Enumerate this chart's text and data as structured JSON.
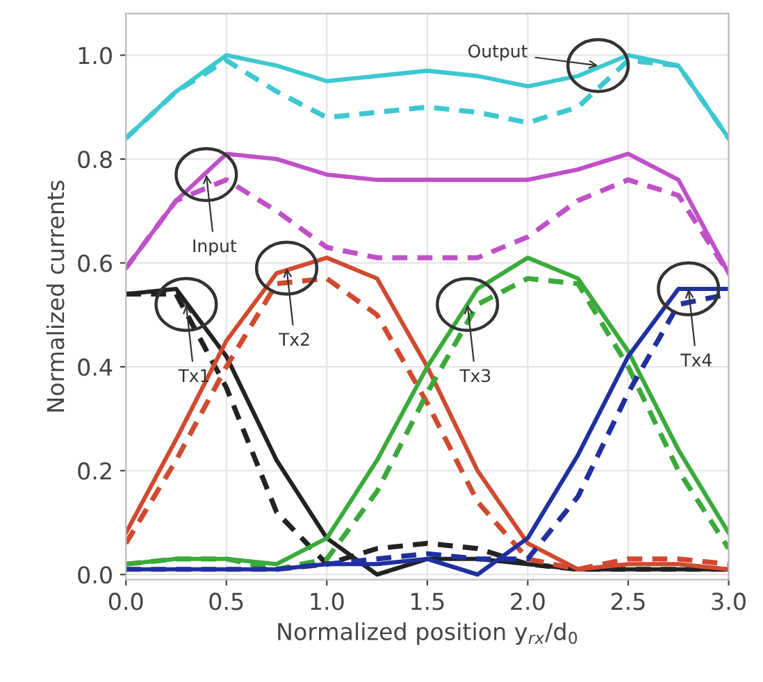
{
  "chart_data": {
    "type": "line",
    "xlabel": "Normalized position y$_{rx}$/d$_{0}$",
    "ylabel": "Normalized currents",
    "x": [
      0,
      0.25,
      0.5,
      0.75,
      1.0,
      1.25,
      1.5,
      1.75,
      2.0,
      2.25,
      2.5,
      2.75,
      3.0
    ],
    "xlim": [
      0,
      3
    ],
    "ylim": [
      -0.01,
      1.08
    ],
    "xticks": [
      {
        "value": 0,
        "label": "0.0"
      },
      {
        "value": 0.5,
        "label": "0.5"
      },
      {
        "value": 1,
        "label": "1.0"
      },
      {
        "value": 1.5,
        "label": "1.5"
      },
      {
        "value": 2,
        "label": "2.0"
      },
      {
        "value": 2.5,
        "label": "2.5"
      },
      {
        "value": 3,
        "label": "3.0"
      }
    ],
    "yticks": [
      {
        "value": 0,
        "label": "0.0"
      },
      {
        "value": 0.2,
        "label": "0.2"
      },
      {
        "value": 0.4,
        "label": "0.4"
      },
      {
        "value": 0.6,
        "label": "0.6"
      },
      {
        "value": 0.8,
        "label": "0.8"
      },
      {
        "value": 1,
        "label": "1.0"
      }
    ],
    "grid": true,
    "marker": "none",
    "series": [
      {
        "color": "#3cc8d0",
        "line_style": "solid",
        "values": [
          0.84,
          0.93,
          1.0,
          0.98,
          0.95,
          0.96,
          0.97,
          0.96,
          0.94,
          0.96,
          1.0,
          0.98,
          0.84
        ]
      },
      {
        "color": "#3cc8d0",
        "line_style": "dashed",
        "values": [
          0.84,
          0.93,
          0.99,
          0.93,
          0.88,
          0.89,
          0.9,
          0.89,
          0.87,
          0.9,
          0.99,
          0.98,
          0.84
        ]
      },
      {
        "color": "#c050c8",
        "line_style": "solid",
        "values": [
          0.59,
          0.72,
          0.81,
          0.8,
          0.77,
          0.76,
          0.76,
          0.76,
          0.76,
          0.78,
          0.81,
          0.76,
          0.58
        ]
      },
      {
        "color": "#c050c8",
        "line_style": "dashed",
        "values": [
          0.59,
          0.72,
          0.76,
          0.7,
          0.63,
          0.61,
          0.61,
          0.61,
          0.65,
          0.72,
          0.76,
          0.73,
          0.58
        ]
      },
      {
        "color": "#222222",
        "line_style": "solid",
        "values": [
          0.54,
          0.55,
          0.42,
          0.22,
          0.07,
          0.0,
          0.03,
          0.03,
          0.02,
          0.01,
          0.01,
          0.01,
          0.01
        ]
      },
      {
        "color": "#222222",
        "line_style": "dashed",
        "values": [
          0.54,
          0.54,
          0.36,
          0.12,
          0.02,
          0.05,
          0.06,
          0.05,
          0.02,
          0.01,
          0.01,
          0.01,
          0.01
        ]
      },
      {
        "color": "#d04a30",
        "line_style": "solid",
        "values": [
          0.08,
          0.26,
          0.45,
          0.58,
          0.61,
          0.57,
          0.4,
          0.2,
          0.06,
          0.01,
          0.02,
          0.02,
          0.01
        ]
      },
      {
        "color": "#d04a30",
        "line_style": "dashed",
        "values": [
          0.06,
          0.22,
          0.4,
          0.56,
          0.57,
          0.5,
          0.33,
          0.14,
          0.03,
          0.01,
          0.03,
          0.03,
          0.02
        ]
      },
      {
        "color": "#3aaa3a",
        "line_style": "solid",
        "values": [
          0.02,
          0.03,
          0.03,
          0.02,
          0.07,
          0.22,
          0.4,
          0.55,
          0.61,
          0.57,
          0.43,
          0.24,
          0.08
        ]
      },
      {
        "color": "#3aaa3a",
        "line_style": "dashed",
        "values": [
          0.02,
          0.03,
          0.03,
          0.01,
          0.03,
          0.16,
          0.35,
          0.52,
          0.57,
          0.56,
          0.4,
          0.2,
          0.05
        ]
      },
      {
        "color": "#2030a0",
        "line_style": "solid",
        "values": [
          0.01,
          0.01,
          0.01,
          0.01,
          0.02,
          0.02,
          0.03,
          0.0,
          0.07,
          0.23,
          0.42,
          0.55,
          0.55
        ]
      },
      {
        "color": "#2030a0",
        "line_style": "dashed",
        "values": [
          0.01,
          0.01,
          0.01,
          0.01,
          0.02,
          0.03,
          0.04,
          0.03,
          0.03,
          0.15,
          0.35,
          0.52,
          0.54
        ]
      }
    ],
    "annotations": [
      {
        "text": "Output",
        "x": 2.35,
        "y": 0.98
      },
      {
        "text": "Input",
        "x": 0.4,
        "y": 0.77
      },
      {
        "text": "Tx1",
        "x": 0.3,
        "y": 0.52
      },
      {
        "text": "Tx2",
        "x": 0.8,
        "y": 0.59
      },
      {
        "text": "Tx3",
        "x": 1.7,
        "y": 0.52
      },
      {
        "text": "Tx4",
        "x": 2.8,
        "y": 0.55
      }
    ]
  }
}
